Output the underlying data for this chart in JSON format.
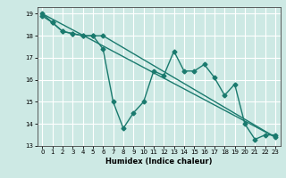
{
  "title": "",
  "xlabel": "Humidex (Indice chaleur)",
  "xlim": [
    -0.5,
    23.5
  ],
  "ylim": [
    13,
    19.3
  ],
  "yticks": [
    13,
    14,
    15,
    16,
    17,
    18,
    19
  ],
  "xticks": [
    0,
    1,
    2,
    3,
    4,
    5,
    6,
    7,
    8,
    9,
    10,
    11,
    12,
    13,
    14,
    15,
    16,
    17,
    18,
    19,
    20,
    21,
    22,
    23
  ],
  "bg_color": "#cde9e4",
  "grid_color": "#ffffff",
  "line_color": "#1a7a6e",
  "line1_x": [
    0,
    23
  ],
  "line1_y": [
    19.0,
    13.4
  ],
  "line2_x": [
    0,
    1,
    2,
    3,
    4,
    5,
    6,
    7,
    8,
    9,
    10,
    11,
    12,
    13,
    14,
    15,
    16,
    17,
    18,
    19,
    20,
    21,
    22,
    23
  ],
  "line2_y": [
    18.9,
    18.6,
    18.2,
    18.1,
    18.0,
    18.0,
    17.4,
    15.0,
    13.8,
    14.5,
    15.0,
    16.4,
    16.2,
    17.3,
    16.4,
    16.4,
    16.7,
    16.1,
    15.3,
    15.8,
    14.0,
    13.3,
    13.5,
    13.5
  ],
  "line3_x": [
    0,
    1,
    2,
    3,
    4,
    5,
    6,
    23
  ],
  "line3_y": [
    19.0,
    18.6,
    18.2,
    18.1,
    18.0,
    18.0,
    18.0,
    13.4
  ],
  "marker": "D",
  "markersize": 2.5,
  "linewidth": 1.0
}
